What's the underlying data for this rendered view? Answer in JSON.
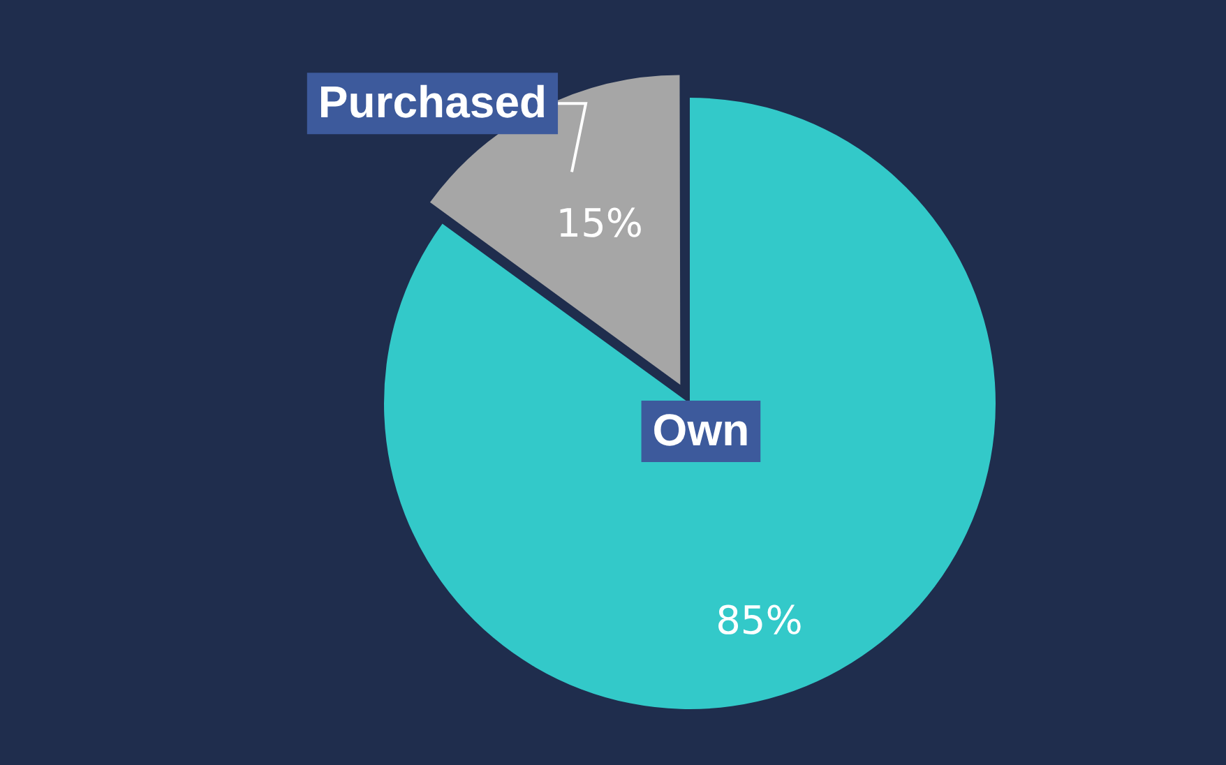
{
  "chart_data": {
    "type": "pie",
    "categories": [
      "Own",
      "Purchased"
    ],
    "values": [
      85,
      15
    ],
    "colors": [
      "#33c9c9",
      "#a6a6a6"
    ],
    "value_labels": [
      "85%",
      "15%"
    ],
    "legend": false
  }
}
